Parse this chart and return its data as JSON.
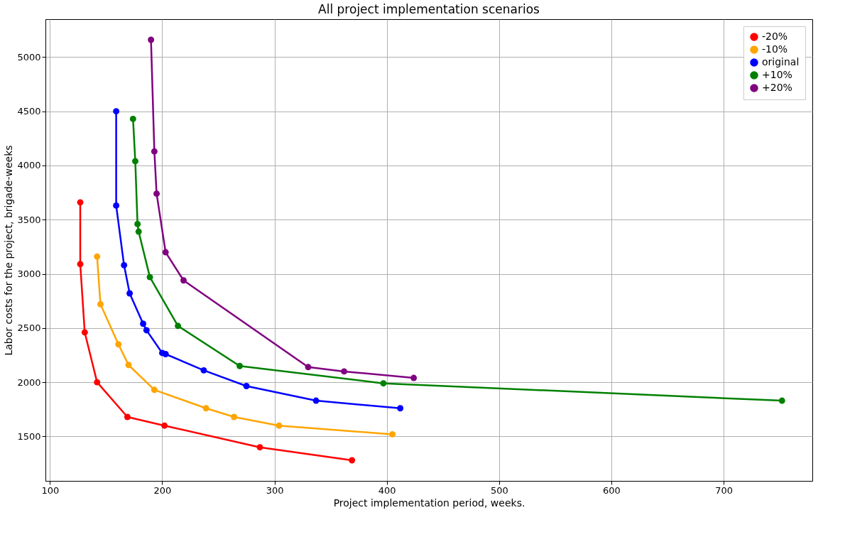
{
  "chart_data": {
    "type": "line",
    "title": "All project implementation scenarios",
    "xlabel": "Project implementation period, weeks.",
    "ylabel": "Labor costs for the project, brigade-weeks",
    "xlim": [
      96,
      779
    ],
    "ylim": [
      1090,
      5350
    ],
    "xticks": [
      100,
      200,
      300,
      400,
      500,
      600,
      700
    ],
    "yticks": [
      1500,
      2000,
      2500,
      3000,
      3500,
      4000,
      4500,
      5000
    ],
    "grid": true,
    "legend": "top right",
    "marker": "circle",
    "line_style": "solid",
    "series": [
      {
        "name": "-20%",
        "color": "#ff0000",
        "x": [
          127,
          127,
          131,
          142,
          169,
          202,
          287,
          369
        ],
        "values": [
          3660,
          3090,
          2460,
          2000,
          1680,
          1600,
          1400,
          1280
        ]
      },
      {
        "name": "-10%",
        "color": "#ffa500",
        "x": [
          142,
          145,
          161,
          170,
          193,
          239,
          264,
          304,
          405
        ],
        "values": [
          3160,
          2720,
          2350,
          2160,
          1930,
          1760,
          1680,
          1600,
          1520
        ]
      },
      {
        "name": "original",
        "color": "#0000ff",
        "x": [
          159,
          159,
          166,
          171,
          183,
          186,
          200,
          203,
          237,
          275,
          337,
          412
        ],
        "values": [
          4500,
          3630,
          3080,
          2820,
          2540,
          2480,
          2270,
          2260,
          2110,
          1965,
          1830,
          1760
        ]
      },
      {
        "name": "+10%",
        "color": "#008000",
        "x": [
          174,
          176,
          178,
          179,
          189,
          214,
          269,
          397,
          752
        ],
        "values": [
          4430,
          4040,
          3460,
          3390,
          2970,
          2520,
          2150,
          1990,
          1830
        ]
      },
      {
        "name": "+20%",
        "color": "#800080",
        "x": [
          190,
          193,
          195,
          203,
          219,
          330,
          362,
          424
        ],
        "values": [
          5160,
          4130,
          3740,
          3200,
          2940,
          2140,
          2100,
          2040
        ]
      }
    ]
  }
}
